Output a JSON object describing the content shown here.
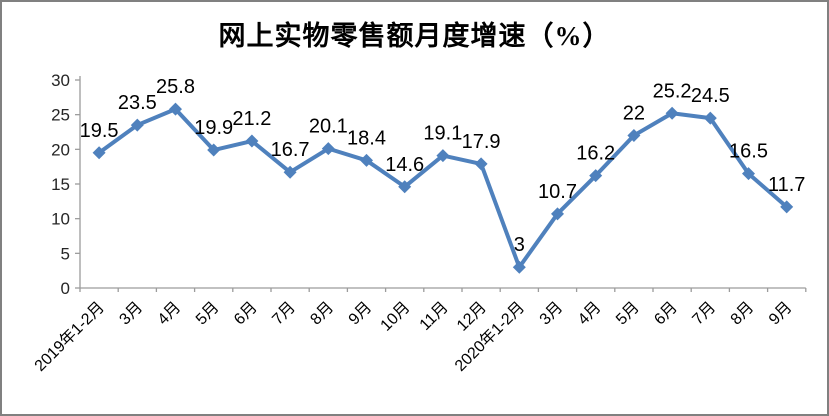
{
  "chart_data": {
    "type": "line",
    "title": "网上实物零售额月度增速（%）",
    "categories": [
      "2019年1-2月",
      "3月",
      "4月",
      "5月",
      "6月",
      "7月",
      "8月",
      "9月",
      "10月",
      "11月",
      "12月",
      "2020年1-2月",
      "3月",
      "4月",
      "5月",
      "6月",
      "7月",
      "8月",
      "9月"
    ],
    "values": [
      19.5,
      23.5,
      25.8,
      19.9,
      21.2,
      16.7,
      20.1,
      18.4,
      14.6,
      19.1,
      17.9,
      3,
      10.7,
      16.2,
      22,
      25.2,
      24.5,
      16.5,
      11.7
    ],
    "data_labels": [
      "19.5",
      "23.5",
      "25.8",
      "19.9",
      "21.2",
      "16.7",
      "20.1",
      "18.4",
      "14.6",
      "19.1",
      "17.9",
      "3",
      "10.7",
      "16.2",
      "22",
      "25.2",
      "24.5",
      "16.5",
      "11.7"
    ],
    "xlabel": "",
    "ylabel": "",
    "ylim": [
      0,
      30
    ],
    "yticks": [
      0,
      5,
      10,
      15,
      20,
      25,
      30
    ],
    "x_label_rotation_deg": -45,
    "grid": false,
    "legend_position": "none",
    "marker": "diamond",
    "colors": {
      "line": "#4F81BD",
      "marker": "#4F81BD",
      "axis": "#9c9c9c",
      "data_label": "#000000",
      "tick_label": "#262626",
      "frame_border": "#808080",
      "background": "#ffffff"
    }
  }
}
